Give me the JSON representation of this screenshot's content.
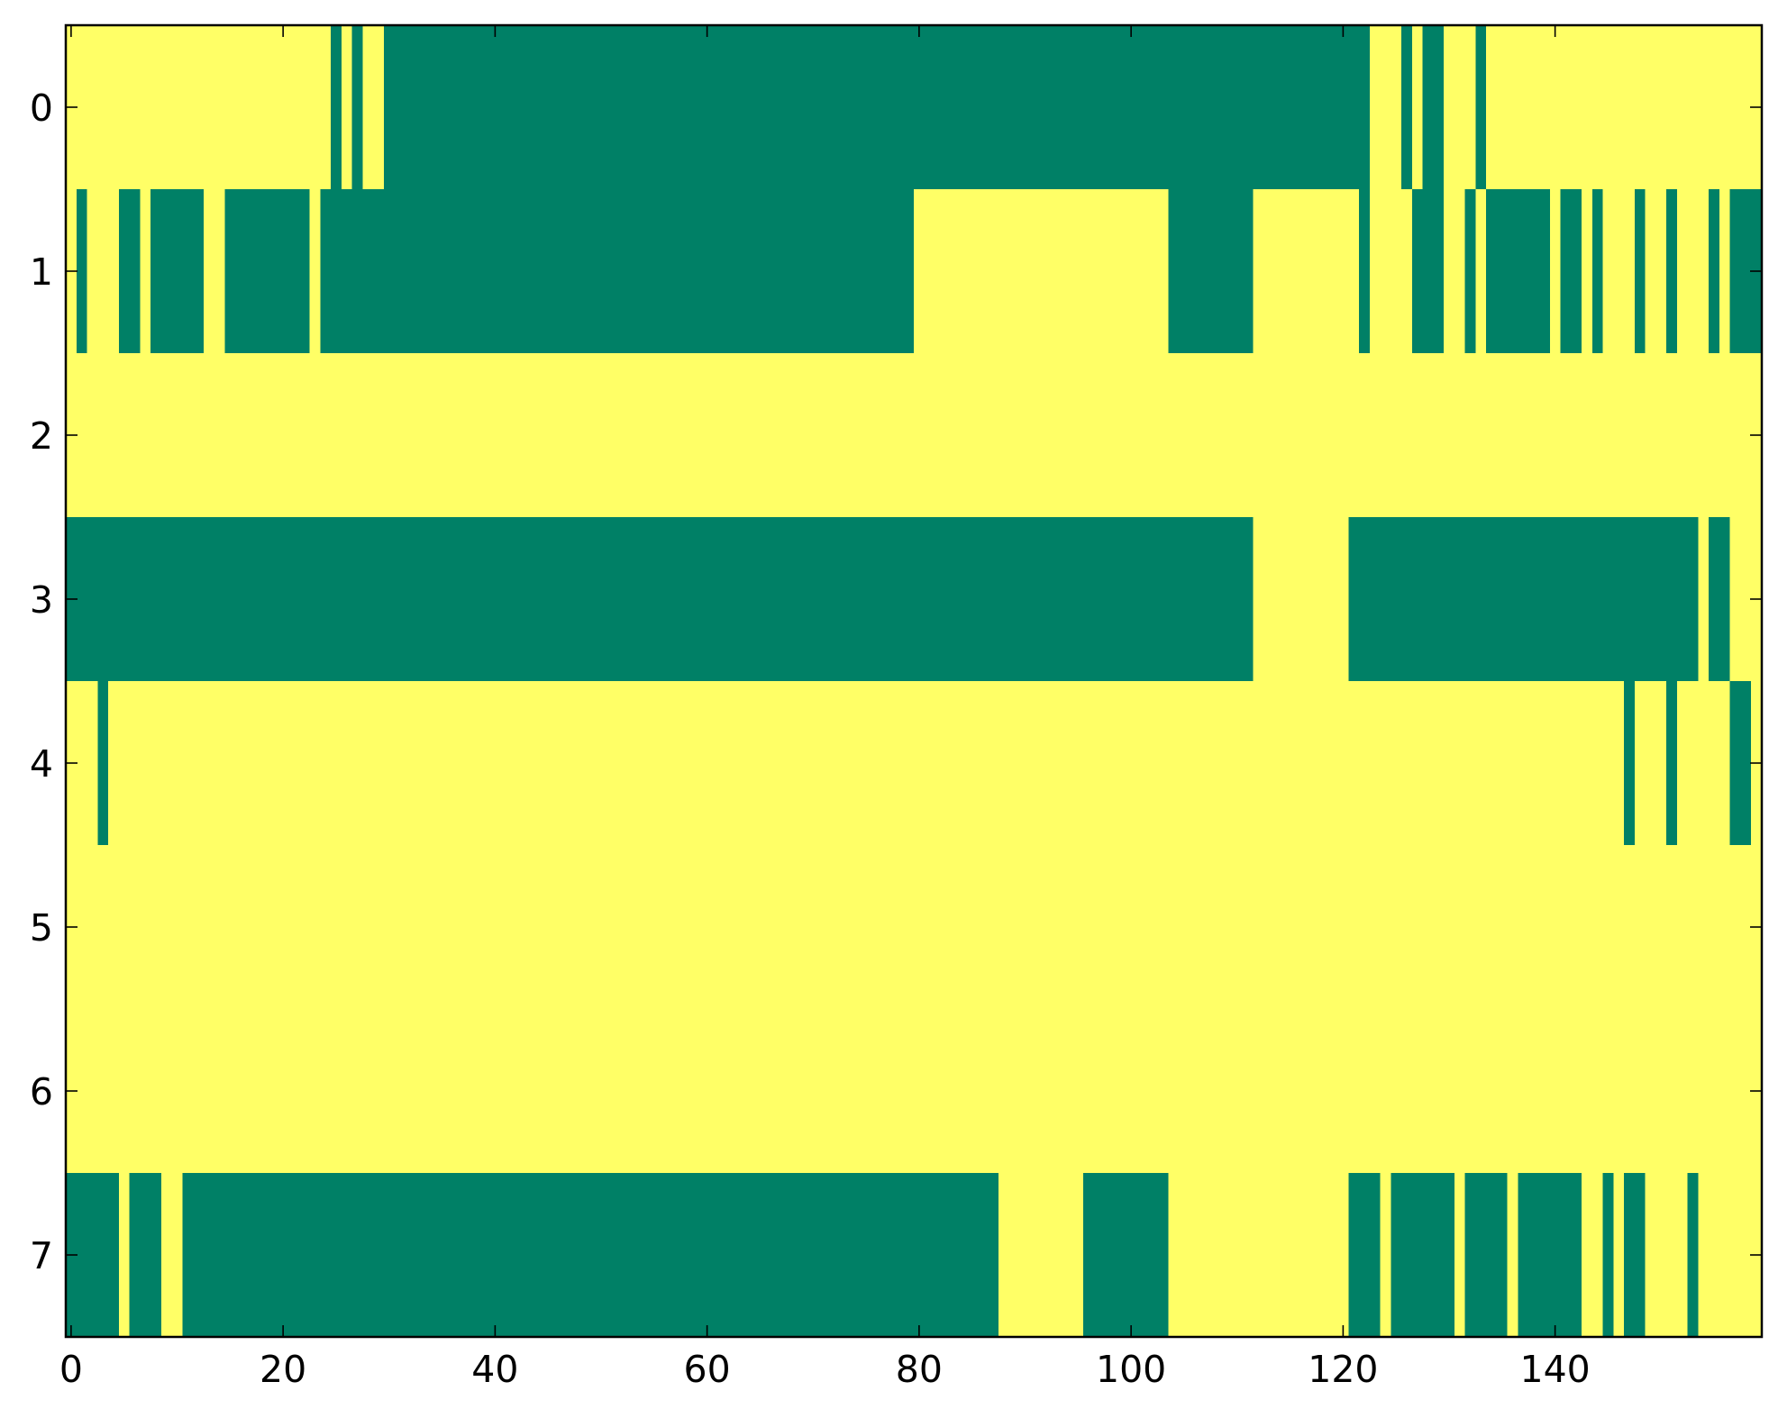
{
  "chart_data": {
    "type": "heatmap",
    "colors": [
      "#008066",
      "#ffff66"
    ],
    "xlim": [
      -0.5,
      159.5
    ],
    "ylim": [
      7.5,
      -0.5
    ],
    "xticks": [
      0,
      20,
      40,
      60,
      80,
      100,
      120,
      140
    ],
    "yticks": [
      0,
      1,
      2,
      3,
      4,
      5,
      6,
      7
    ],
    "z": [
      [
        1,
        1,
        1,
        1,
        1,
        1,
        1,
        1,
        1,
        1,
        1,
        1,
        1,
        1,
        1,
        1,
        1,
        1,
        1,
        1,
        1,
        1,
        1,
        1,
        1,
        0,
        1,
        0,
        1,
        1,
        0,
        0,
        0,
        0,
        0,
        0,
        0,
        0,
        0,
        0,
        0,
        0,
        0,
        0,
        0,
        0,
        0,
        0,
        0,
        0,
        0,
        0,
        0,
        0,
        0,
        0,
        0,
        0,
        0,
        0,
        0,
        0,
        0,
        0,
        0,
        0,
        0,
        0,
        0,
        0,
        0,
        0,
        0,
        0,
        0,
        0,
        0,
        0,
        0,
        0,
        0,
        0,
        0,
        0,
        0,
        0,
        0,
        0,
        0,
        0,
        0,
        0,
        0,
        0,
        0,
        0,
        0,
        0,
        0,
        0,
        0,
        0,
        0,
        0,
        0,
        0,
        0,
        0,
        0,
        0,
        0,
        0,
        0,
        0,
        0,
        0,
        0,
        0,
        0,
        0,
        0,
        0,
        0,
        1,
        1,
        1,
        0,
        1,
        0,
        0,
        1,
        1,
        1,
        0,
        1,
        1,
        1,
        1,
        1,
        1,
        1,
        1,
        1,
        1,
        1,
        1,
        1,
        1,
        1,
        1,
        1,
        1,
        1,
        1,
        1,
        1,
        1,
        1,
        1,
        1
      ],
      [
        1,
        0,
        1,
        1,
        1,
        0,
        0,
        1,
        0,
        0,
        0,
        0,
        0,
        1,
        1,
        0,
        0,
        0,
        0,
        0,
        0,
        0,
        0,
        1,
        0,
        0,
        0,
        0,
        0,
        0,
        0,
        0,
        0,
        0,
        0,
        0,
        0,
        0,
        0,
        0,
        0,
        0,
        0,
        0,
        0,
        0,
        0,
        0,
        0,
        0,
        0,
        0,
        0,
        0,
        0,
        0,
        0,
        0,
        0,
        0,
        0,
        0,
        0,
        0,
        0,
        0,
        0,
        0,
        0,
        0,
        0,
        0,
        0,
        0,
        0,
        0,
        0,
        0,
        0,
        0,
        1,
        1,
        1,
        1,
        1,
        1,
        1,
        1,
        1,
        1,
        1,
        1,
        1,
        1,
        1,
        1,
        1,
        1,
        1,
        1,
        1,
        1,
        1,
        1,
        0,
        0,
        0,
        0,
        0,
        0,
        0,
        0,
        1,
        1,
        1,
        1,
        1,
        1,
        1,
        1,
        1,
        1,
        0,
        1,
        1,
        1,
        1,
        0,
        0,
        0,
        1,
        1,
        0,
        1,
        0,
        0,
        0,
        0,
        0,
        0,
        1,
        0,
        0,
        1,
        0,
        1,
        1,
        1,
        0,
        1,
        1,
        0,
        1,
        1,
        1,
        0,
        1,
        0,
        0,
        0
      ],
      [
        1,
        1,
        1,
        1,
        1,
        1,
        1,
        1,
        1,
        1,
        1,
        1,
        1,
        1,
        1,
        1,
        1,
        1,
        1,
        1,
        1,
        1,
        1,
        1,
        1,
        1,
        1,
        1,
        1,
        1,
        1,
        1,
        1,
        1,
        1,
        1,
        1,
        1,
        1,
        1,
        1,
        1,
        1,
        1,
        1,
        1,
        1,
        1,
        1,
        1,
        1,
        1,
        1,
        1,
        1,
        1,
        1,
        1,
        1,
        1,
        1,
        1,
        1,
        1,
        1,
        1,
        1,
        1,
        1,
        1,
        1,
        1,
        1,
        1,
        1,
        1,
        1,
        1,
        1,
        1,
        1,
        1,
        1,
        1,
        1,
        1,
        1,
        1,
        1,
        1,
        1,
        1,
        1,
        1,
        1,
        1,
        1,
        1,
        1,
        1,
        1,
        1,
        1,
        1,
        1,
        1,
        1,
        1,
        1,
        1,
        1,
        1,
        1,
        1,
        1,
        1,
        1,
        1,
        1,
        1,
        1,
        1,
        1,
        1,
        1,
        1,
        1,
        1,
        1,
        1,
        1,
        1,
        1,
        1,
        1,
        1,
        1,
        1,
        1,
        1,
        1,
        1,
        1,
        1,
        1,
        1,
        1,
        1,
        1,
        1,
        1,
        1,
        1,
        1,
        1,
        1,
        1,
        1,
        1,
        1
      ],
      [
        0,
        0,
        0,
        0,
        0,
        0,
        0,
        0,
        0,
        0,
        0,
        0,
        0,
        0,
        0,
        0,
        0,
        0,
        0,
        0,
        0,
        0,
        0,
        0,
        0,
        0,
        0,
        0,
        0,
        0,
        0,
        0,
        0,
        0,
        0,
        0,
        0,
        0,
        0,
        0,
        0,
        0,
        0,
        0,
        0,
        0,
        0,
        0,
        0,
        0,
        0,
        0,
        0,
        0,
        0,
        0,
        0,
        0,
        0,
        0,
        0,
        0,
        0,
        0,
        0,
        0,
        0,
        0,
        0,
        0,
        0,
        0,
        0,
        0,
        0,
        0,
        0,
        0,
        0,
        0,
        0,
        0,
        0,
        0,
        0,
        0,
        0,
        0,
        0,
        0,
        0,
        0,
        0,
        0,
        0,
        0,
        0,
        0,
        0,
        0,
        0,
        0,
        0,
        0,
        0,
        0,
        0,
        0,
        0,
        0,
        0,
        0,
        1,
        1,
        1,
        1,
        1,
        1,
        1,
        1,
        1,
        0,
        0,
        0,
        0,
        0,
        0,
        0,
        0,
        0,
        0,
        0,
        0,
        0,
        0,
        0,
        0,
        0,
        0,
        0,
        0,
        0,
        0,
        0,
        0,
        0,
        0,
        0,
        0,
        0,
        0,
        0,
        0,
        0,
        1,
        0,
        0,
        1,
        1,
        1
      ],
      [
        1,
        1,
        1,
        0,
        1,
        1,
        1,
        1,
        1,
        1,
        1,
        1,
        1,
        1,
        1,
        1,
        1,
        1,
        1,
        1,
        1,
        1,
        1,
        1,
        1,
        1,
        1,
        1,
        1,
        1,
        1,
        1,
        1,
        1,
        1,
        1,
        1,
        1,
        1,
        1,
        1,
        1,
        1,
        1,
        1,
        1,
        1,
        1,
        1,
        1,
        1,
        1,
        1,
        1,
        1,
        1,
        1,
        1,
        1,
        1,
        1,
        1,
        1,
        1,
        1,
        1,
        1,
        1,
        1,
        1,
        1,
        1,
        1,
        1,
        1,
        1,
        1,
        1,
        1,
        1,
        1,
        1,
        1,
        1,
        1,
        1,
        1,
        1,
        1,
        1,
        1,
        1,
        1,
        1,
        1,
        1,
        1,
        1,
        1,
        1,
        1,
        1,
        1,
        1,
        1,
        1,
        1,
        1,
        1,
        1,
        1,
        1,
        1,
        1,
        1,
        1,
        1,
        1,
        1,
        1,
        1,
        1,
        1,
        1,
        1,
        1,
        1,
        1,
        1,
        1,
        1,
        1,
        1,
        1,
        1,
        1,
        1,
        1,
        1,
        1,
        1,
        1,
        1,
        1,
        1,
        1,
        1,
        0,
        1,
        1,
        1,
        0,
        1,
        1,
        1,
        1,
        1,
        0,
        0,
        1
      ],
      [
        1,
        1,
        1,
        1,
        1,
        1,
        1,
        1,
        1,
        1,
        1,
        1,
        1,
        1,
        1,
        1,
        1,
        1,
        1,
        1,
        1,
        1,
        1,
        1,
        1,
        1,
        1,
        1,
        1,
        1,
        1,
        1,
        1,
        1,
        1,
        1,
        1,
        1,
        1,
        1,
        1,
        1,
        1,
        1,
        1,
        1,
        1,
        1,
        1,
        1,
        1,
        1,
        1,
        1,
        1,
        1,
        1,
        1,
        1,
        1,
        1,
        1,
        1,
        1,
        1,
        1,
        1,
        1,
        1,
        1,
        1,
        1,
        1,
        1,
        1,
        1,
        1,
        1,
        1,
        1,
        1,
        1,
        1,
        1,
        1,
        1,
        1,
        1,
        1,
        1,
        1,
        1,
        1,
        1,
        1,
        1,
        1,
        1,
        1,
        1,
        1,
        1,
        1,
        1,
        1,
        1,
        1,
        1,
        1,
        1,
        1,
        1,
        1,
        1,
        1,
        1,
        1,
        1,
        1,
        1,
        1,
        1,
        1,
        1,
        1,
        1,
        1,
        1,
        1,
        1,
        1,
        1,
        1,
        1,
        1,
        1,
        1,
        1,
        1,
        1,
        1,
        1,
        1,
        1,
        1,
        1,
        1,
        1,
        1,
        1,
        1,
        1,
        1,
        1,
        1,
        1,
        1,
        1,
        1,
        1
      ],
      [
        1,
        1,
        1,
        1,
        1,
        1,
        1,
        1,
        1,
        1,
        1,
        1,
        1,
        1,
        1,
        1,
        1,
        1,
        1,
        1,
        1,
        1,
        1,
        1,
        1,
        1,
        1,
        1,
        1,
        1,
        1,
        1,
        1,
        1,
        1,
        1,
        1,
        1,
        1,
        1,
        1,
        1,
        1,
        1,
        1,
        1,
        1,
        1,
        1,
        1,
        1,
        1,
        1,
        1,
        1,
        1,
        1,
        1,
        1,
        1,
        1,
        1,
        1,
        1,
        1,
        1,
        1,
        1,
        1,
        1,
        1,
        1,
        1,
        1,
        1,
        1,
        1,
        1,
        1,
        1,
        1,
        1,
        1,
        1,
        1,
        1,
        1,
        1,
        1,
        1,
        1,
        1,
        1,
        1,
        1,
        1,
        1,
        1,
        1,
        1,
        1,
        1,
        1,
        1,
        1,
        1,
        1,
        1,
        1,
        1,
        1,
        1,
        1,
        1,
        1,
        1,
        1,
        1,
        1,
        1,
        1,
        1,
        1,
        1,
        1,
        1,
        1,
        1,
        1,
        1,
        1,
        1,
        1,
        1,
        1,
        1,
        1,
        1,
        1,
        1,
        1,
        1,
        1,
        1,
        1,
        1,
        1,
        1,
        1,
        1,
        1,
        1,
        1,
        1,
        1,
        1,
        1,
        1,
        1,
        1
      ],
      [
        0,
        0,
        0,
        0,
        0,
        1,
        0,
        0,
        0,
        1,
        1,
        0,
        0,
        0,
        0,
        0,
        0,
        0,
        0,
        0,
        0,
        0,
        0,
        0,
        0,
        0,
        0,
        0,
        0,
        0,
        0,
        0,
        0,
        0,
        0,
        0,
        0,
        0,
        0,
        0,
        0,
        0,
        0,
        0,
        0,
        0,
        0,
        0,
        0,
        0,
        0,
        0,
        0,
        0,
        0,
        0,
        0,
        0,
        0,
        0,
        0,
        0,
        0,
        0,
        0,
        0,
        0,
        0,
        0,
        0,
        0,
        0,
        0,
        0,
        0,
        0,
        0,
        0,
        0,
        0,
        0,
        0,
        0,
        0,
        0,
        0,
        0,
        0,
        1,
        1,
        1,
        1,
        1,
        1,
        1,
        1,
        0,
        0,
        0,
        0,
        0,
        0,
        0,
        0,
        1,
        1,
        1,
        1,
        1,
        1,
        1,
        1,
        1,
        1,
        1,
        1,
        1,
        1,
        1,
        1,
        1,
        0,
        0,
        0,
        1,
        0,
        0,
        0,
        0,
        0,
        0,
        1,
        0,
        0,
        0,
        0,
        1,
        0,
        0,
        0,
        0,
        0,
        0,
        1,
        1,
        0,
        1,
        0,
        0,
        1,
        1,
        1,
        1,
        0,
        1,
        1,
        1,
        1,
        1,
        1
      ]
    ]
  }
}
